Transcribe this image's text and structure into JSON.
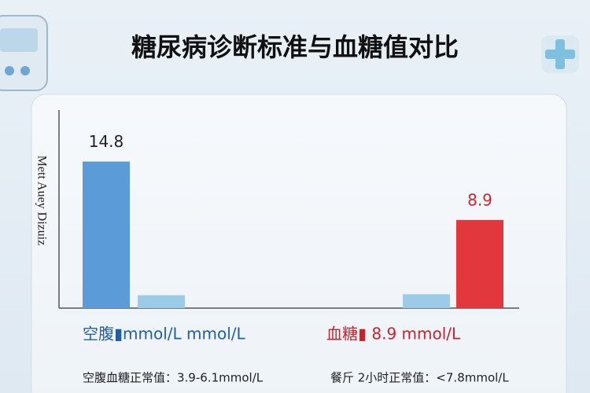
{
  "chart_data": {
    "type": "bar",
    "title": "糖尿病诊断标准与血糖值对比",
    "y_label": "Mett Auey Dizuiz",
    "categories": [
      null,
      null,
      null,
      null
    ],
    "values": [
      14.8,
      1.3,
      1.4,
      8.9
    ],
    "value_labels": [
      "14.8",
      null,
      null,
      "8.9"
    ],
    "colors": [
      "#5b9bd8",
      "#9ccbe8",
      "#9ccbe8",
      "#e2383d"
    ],
    "label_colors": [
      "#222222",
      null,
      null,
      "#d0262b"
    ],
    "ylim": [
      0,
      20
    ],
    "annotations": [
      {
        "text": "空腹▮mmol/L   mmol/L",
        "color": "#1f5fa8"
      },
      {
        "text": "血糖▮ 8.9  mmol/L",
        "color": "#c8232a"
      }
    ],
    "notes": [
      "空腹血糖正常值：3.9-6.1mmol/L",
      "餐斤 2小时正常值：<7.8mmol/L"
    ]
  }
}
